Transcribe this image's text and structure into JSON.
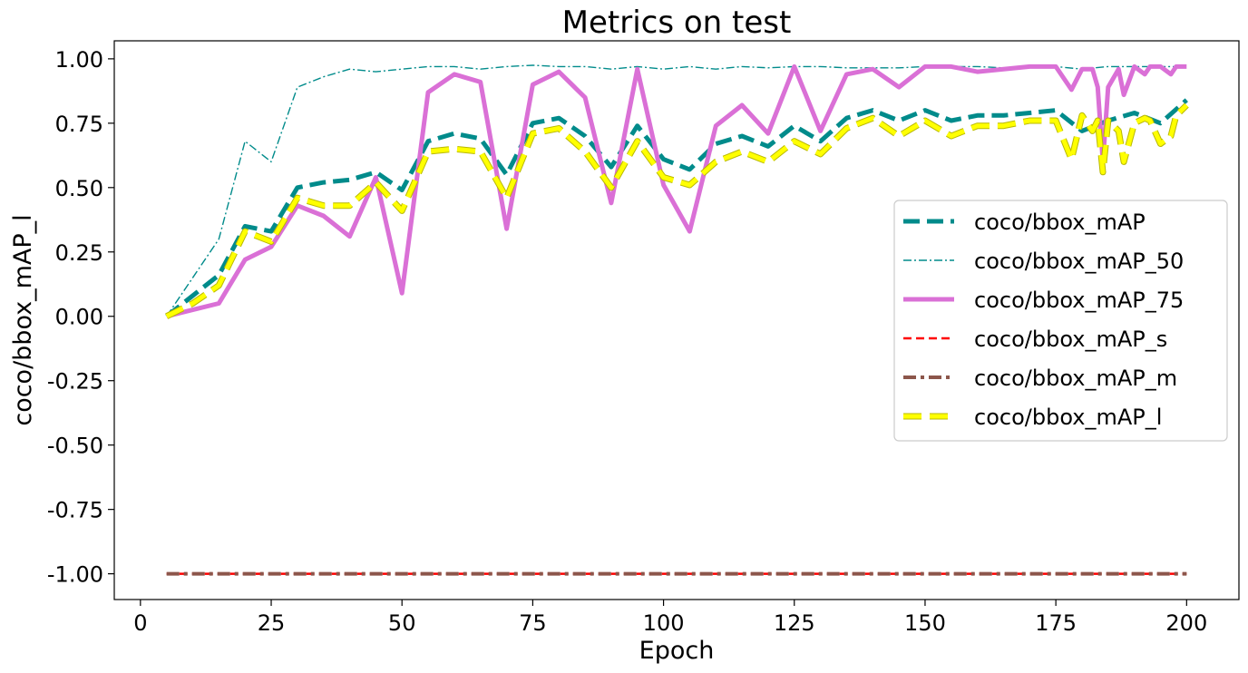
{
  "chart_data": {
    "type": "line",
    "title": "Metrics on test",
    "xlabel": "Epoch",
    "ylabel": "coco/bbox_mAP_l",
    "xlim": [
      -5,
      210
    ],
    "ylim": [
      -1.1,
      1.07
    ],
    "xticks": [
      0,
      25,
      50,
      75,
      100,
      125,
      150,
      175,
      200
    ],
    "xtick_labels": [
      "0",
      "25",
      "50",
      "75",
      "100",
      "125",
      "150",
      "175",
      "200"
    ],
    "yticks": [
      1.0,
      0.75,
      0.5,
      0.25,
      0.0,
      -0.25,
      -0.5,
      -0.75,
      -1.0
    ],
    "ytick_labels": [
      "1.00",
      "0.75",
      "0.50",
      "0.25",
      "0.00",
      "-0.25",
      "-0.50",
      "-0.75",
      "-1.00"
    ],
    "legend_position": "center-right",
    "series": [
      {
        "name": "coco/bbox_mAP",
        "color": "#008b8b",
        "style": "dashed-thick",
        "x": [
          5,
          10,
          15,
          20,
          25,
          30,
          35,
          40,
          45,
          50,
          55,
          60,
          65,
          70,
          75,
          80,
          85,
          90,
          95,
          100,
          105,
          110,
          115,
          120,
          125,
          130,
          135,
          140,
          145,
          150,
          155,
          160,
          165,
          170,
          175,
          180,
          185,
          190,
          195,
          200
        ],
        "values": [
          0,
          0.08,
          0.16,
          0.35,
          0.33,
          0.5,
          0.52,
          0.53,
          0.56,
          0.49,
          0.68,
          0.71,
          0.69,
          0.55,
          0.75,
          0.77,
          0.7,
          0.58,
          0.74,
          0.61,
          0.57,
          0.67,
          0.7,
          0.66,
          0.74,
          0.68,
          0.77,
          0.8,
          0.76,
          0.8,
          0.76,
          0.78,
          0.78,
          0.79,
          0.8,
          0.72,
          0.76,
          0.79,
          0.75,
          0.84
        ]
      },
      {
        "name": "coco/bbox_mAP_50",
        "color": "#008b8b",
        "style": "dashdot-thin",
        "x": [
          5,
          10,
          15,
          20,
          25,
          30,
          35,
          40,
          45,
          50,
          55,
          60,
          65,
          70,
          75,
          80,
          85,
          90,
          95,
          100,
          105,
          110,
          115,
          120,
          125,
          130,
          135,
          140,
          145,
          150,
          155,
          160,
          165,
          170,
          175,
          180,
          185,
          190,
          195,
          200
        ],
        "values": [
          0,
          0.15,
          0.3,
          0.68,
          0.6,
          0.89,
          0.93,
          0.96,
          0.95,
          0.96,
          0.97,
          0.97,
          0.96,
          0.97,
          0.975,
          0.97,
          0.97,
          0.96,
          0.97,
          0.96,
          0.97,
          0.96,
          0.97,
          0.965,
          0.97,
          0.97,
          0.965,
          0.965,
          0.965,
          0.97,
          0.97,
          0.97,
          0.965,
          0.97,
          0.97,
          0.96,
          0.97,
          0.97,
          0.97,
          0.97
        ]
      },
      {
        "name": "coco/bbox_mAP_75",
        "color": "#da70d6",
        "style": "solid-thick",
        "x": [
          5,
          10,
          15,
          20,
          25,
          30,
          35,
          40,
          45,
          50,
          55,
          60,
          65,
          70,
          75,
          80,
          85,
          90,
          95,
          100,
          105,
          110,
          115,
          120,
          125,
          130,
          135,
          140,
          145,
          150,
          155,
          160,
          165,
          170,
          175,
          178,
          180,
          182,
          183,
          184,
          185,
          187,
          188,
          190,
          192,
          193,
          195,
          197,
          198,
          200
        ],
        "values": [
          0,
          0.025,
          0.05,
          0.22,
          0.27,
          0.43,
          0.39,
          0.31,
          0.54,
          0.09,
          0.87,
          0.94,
          0.91,
          0.34,
          0.9,
          0.95,
          0.85,
          0.44,
          0.96,
          0.51,
          0.33,
          0.74,
          0.82,
          0.71,
          0.97,
          0.72,
          0.94,
          0.96,
          0.89,
          0.97,
          0.97,
          0.95,
          0.96,
          0.97,
          0.97,
          0.88,
          0.96,
          0.96,
          0.89,
          0.6,
          0.89,
          0.96,
          0.86,
          0.97,
          0.94,
          0.97,
          0.97,
          0.94,
          0.97,
          0.97
        ]
      },
      {
        "name": "coco/bbox_mAP_s",
        "color": "#ff0000",
        "style": "dashed-medium",
        "x": [
          5,
          200
        ],
        "values": [
          -1,
          -1
        ]
      },
      {
        "name": "coco/bbox_mAP_m",
        "color": "#8c564b",
        "style": "dashdot-thick",
        "x": [
          5,
          200
        ],
        "values": [
          -1,
          -1
        ]
      },
      {
        "name": "coco/bbox_mAP_l",
        "color": "#ffff00",
        "style": "dashed-yellow",
        "x": [
          5,
          10,
          15,
          20,
          25,
          30,
          35,
          40,
          45,
          50,
          55,
          60,
          65,
          70,
          75,
          80,
          85,
          90,
          95,
          100,
          105,
          110,
          115,
          120,
          125,
          130,
          135,
          140,
          145,
          150,
          155,
          160,
          165,
          170,
          175,
          178,
          180,
          182,
          183,
          184,
          185,
          187,
          188,
          190,
          192,
          193,
          195,
          197,
          198,
          200
        ],
        "values": [
          0,
          0.05,
          0.12,
          0.33,
          0.29,
          0.46,
          0.43,
          0.43,
          0.52,
          0.41,
          0.64,
          0.65,
          0.64,
          0.46,
          0.71,
          0.73,
          0.64,
          0.5,
          0.68,
          0.54,
          0.51,
          0.6,
          0.64,
          0.6,
          0.68,
          0.63,
          0.73,
          0.77,
          0.7,
          0.76,
          0.7,
          0.74,
          0.74,
          0.76,
          0.76,
          0.61,
          0.78,
          0.72,
          0.76,
          0.56,
          0.76,
          0.72,
          0.6,
          0.75,
          0.77,
          0.76,
          0.67,
          0.7,
          0.78,
          0.82
        ]
      }
    ]
  }
}
